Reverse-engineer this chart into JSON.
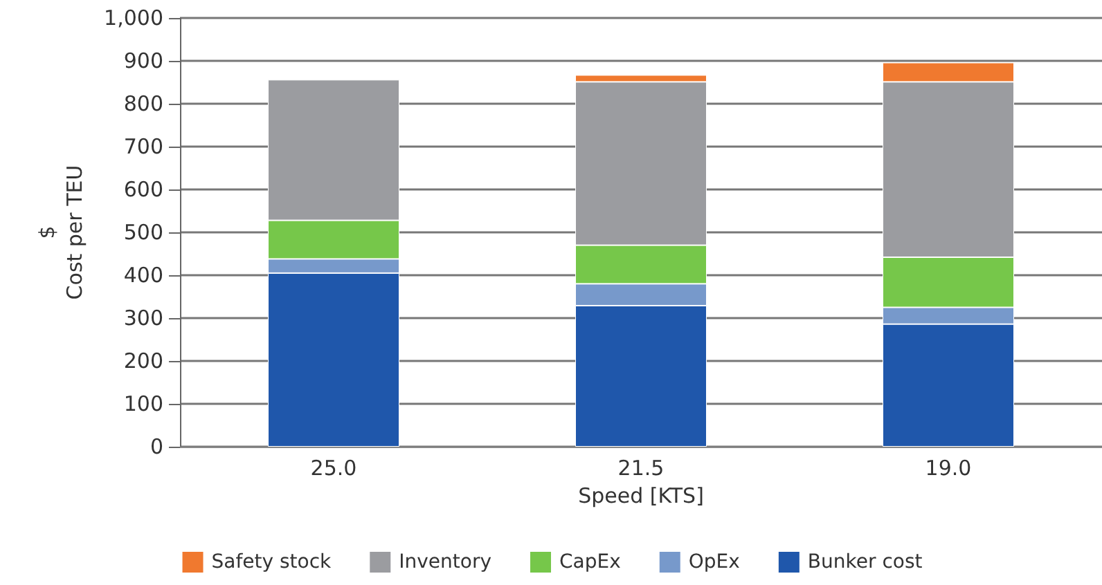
{
  "chart_data": {
    "type": "bar",
    "stacked": true,
    "xlabel": "Speed [KTS]",
    "ylabel": "$\nCost per TEU",
    "categories": [
      "25.0",
      "21.5",
      "19.0"
    ],
    "series": [
      {
        "name": "Bunker cost",
        "color": "#1f57ab",
        "values": [
          405,
          329,
          286
        ]
      },
      {
        "name": "OpEx",
        "color": "#7799cb",
        "values": [
          33,
          51,
          39
        ]
      },
      {
        "name": "CapEx",
        "color": "#76c74a",
        "values": [
          90,
          90,
          117
        ]
      },
      {
        "name": "Inventory",
        "color": "#9b9ca0",
        "values": [
          328,
          381,
          409
        ]
      },
      {
        "name": "Safety stock",
        "color": "#f0792f",
        "values": [
          null,
          16,
          45
        ]
      }
    ],
    "ylim": [
      0,
      1000
    ],
    "yticks": [
      0,
      100,
      200,
      300,
      400,
      500,
      600,
      700,
      800,
      900,
      {
        "value": 1000,
        "label": "1,000"
      }
    ],
    "grid": "y",
    "legend": "bottom"
  }
}
